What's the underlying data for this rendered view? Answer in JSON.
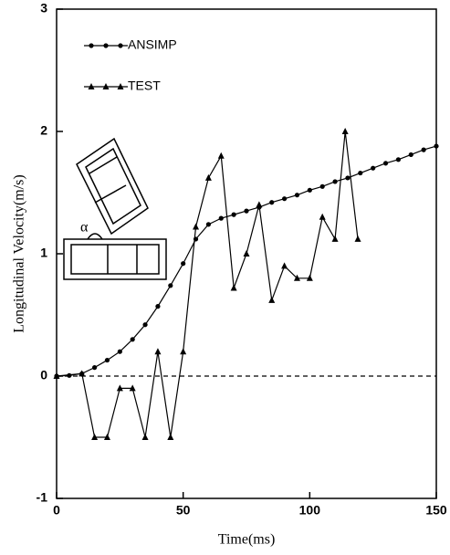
{
  "chart_data": {
    "type": "line",
    "x_label": "Time(ms)",
    "y_label": "Longitudinal Velocity(m/s)",
    "xlim": [
      0,
      150
    ],
    "ylim": [
      -1,
      3
    ],
    "xticks": [
      0,
      50,
      100,
      150
    ],
    "yticks": [
      -1,
      0,
      1,
      2,
      3
    ],
    "hline": 0,
    "annotations": [
      "α"
    ],
    "series": [
      {
        "name": "ANSIMP",
        "color": "#000000",
        "marker": "circle",
        "x": [
          0,
          5,
          10,
          15,
          20,
          25,
          30,
          35,
          40,
          45,
          50,
          55,
          60,
          65,
          70,
          75,
          80,
          85,
          90,
          95,
          100,
          105,
          110,
          115,
          120,
          125,
          130,
          135,
          140,
          145,
          150
        ],
        "values": [
          0,
          0.005,
          0.02,
          0.07,
          0.13,
          0.2,
          0.3,
          0.42,
          0.57,
          0.74,
          0.92,
          1.12,
          1.24,
          1.29,
          1.32,
          1.35,
          1.38,
          1.42,
          1.45,
          1.48,
          1.52,
          1.55,
          1.59,
          1.62,
          1.66,
          1.7,
          1.74,
          1.77,
          1.81,
          1.85,
          1.88
        ]
      },
      {
        "name": "TEST",
        "color": "#000000",
        "marker": "triangle",
        "x": [
          0,
          10,
          15,
          20,
          25,
          30,
          35,
          40,
          45,
          50,
          55,
          60,
          65,
          70,
          75,
          80,
          85,
          90,
          95,
          100,
          105,
          110,
          114,
          119
        ],
        "values": [
          0,
          0.02,
          -0.5,
          -0.5,
          -0.1,
          -0.1,
          -0.5,
          0.2,
          -0.5,
          0.2,
          1.22,
          1.62,
          1.8,
          0.72,
          1.0,
          1.4,
          0.62,
          0.9,
          0.8,
          0.8,
          1.3,
          1.12,
          2.0,
          1.12
        ]
      }
    ]
  }
}
